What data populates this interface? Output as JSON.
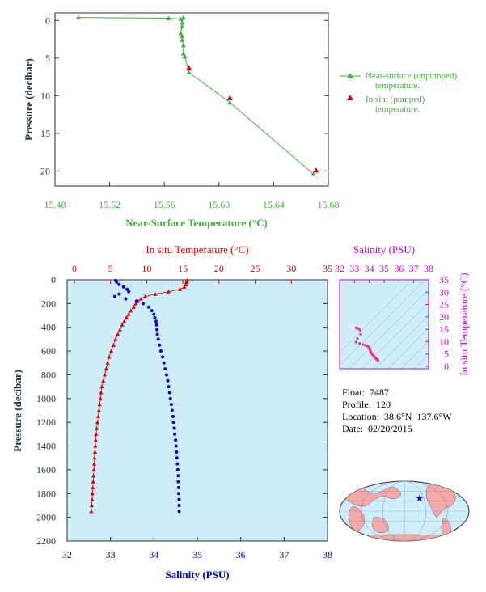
{
  "colors": {
    "green": "#44aa44",
    "red": "#dd0000",
    "blue": "#0000cc",
    "magenta": "#cc00cc",
    "axis_dark": "#223344",
    "panel_bg": "#cdeef8",
    "land": "#f4a8a8",
    "ocean": "#cfeefc"
  },
  "info": {
    "float": "Float:  7487",
    "profile": "Profile:  120",
    "location": "Location:  38.6°N  137.6°W",
    "date": "Date:  02/20/2015"
  },
  "chart_data": [
    {
      "id": "near-surface",
      "type": "line",
      "xlabel": "Near-Surface Temperature (°C)",
      "ylabel": "Pressure (decibar)",
      "xlim": [
        15.48,
        15.68
      ],
      "ylim": [
        22,
        -1
      ],
      "xticks": [
        "15.48",
        "15.52",
        "15.56",
        "15.60",
        "15.64",
        "15.68"
      ],
      "yticks": [
        "0",
        "5",
        "10",
        "15",
        "20"
      ],
      "legend": [
        {
          "label_line1": "Near-surface (unpumped)",
          "label_line2": "temperature."
        },
        {
          "label_line1": "In situ (pumped)",
          "label_line2": "temperature."
        }
      ],
      "series": [
        {
          "marker": "triangle",
          "x": [
            15.497,
            15.563,
            15.572,
            15.574,
            15.573,
            15.573,
            15.572,
            15.573,
            15.573,
            15.574,
            15.574,
            15.575,
            15.578,
            15.608,
            15.669
          ],
          "y": [
            -0.4,
            -0.3,
            -0.2,
            -0.4,
            0.3,
            0.8,
            1.7,
            2.1,
            2.6,
            3.3,
            4.4,
            4.8,
            6.9,
            10.9,
            20.4
          ]
        },
        {
          "marker": "triangle",
          "x": [
            15.578,
            15.608,
            15.671
          ],
          "y": [
            6.3,
            10.3,
            19.9
          ]
        }
      ]
    },
    {
      "id": "profile",
      "type": "scatter",
      "ylabel": "Pressure (decibar)",
      "ylim": [
        2200,
        0
      ],
      "yticks": [
        "0",
        "200",
        "400",
        "600",
        "800",
        "1000",
        "1200",
        "1400",
        "1600",
        "1800",
        "2000",
        "2200"
      ],
      "top_axis": {
        "label": "In situ Temperature (°C)",
        "range": [
          -1,
          35
        ],
        "ticks": [
          "0",
          "5",
          "10",
          "15",
          "20",
          "25",
          "30",
          "35"
        ]
      },
      "bottom_axis": {
        "label": "Salinity (PSU)",
        "range": [
          32,
          38
        ],
        "ticks": [
          "32",
          "33",
          "34",
          "35",
          "36",
          "37",
          "38"
        ]
      },
      "temperature": {
        "marker": "triangle",
        "p": [
          5,
          20,
          40,
          60,
          80,
          100,
          120,
          140,
          160,
          180,
          200,
          230,
          260,
          290,
          320,
          350,
          380,
          420,
          460,
          500,
          550,
          600,
          650,
          700,
          750,
          800,
          850,
          900,
          950,
          1000,
          1050,
          1100,
          1150,
          1200,
          1250,
          1300,
          1350,
          1400,
          1450,
          1500,
          1550,
          1600,
          1650,
          1700,
          1750,
          1800,
          1850,
          1900,
          1950
        ],
        "t": [
          15.6,
          15.5,
          15.4,
          15.2,
          14.6,
          13.0,
          11.2,
          9.8,
          9.2,
          8.8,
          8.5,
          8.2,
          7.8,
          7.5,
          7.2,
          6.9,
          6.6,
          6.3,
          6.0,
          5.7,
          5.4,
          5.1,
          4.8,
          4.6,
          4.4,
          4.2,
          4.0,
          3.8,
          3.7,
          3.6,
          3.5,
          3.4,
          3.3,
          3.2,
          3.1,
          3.0,
          2.95,
          2.9,
          2.85,
          2.8,
          2.75,
          2.7,
          2.65,
          2.6,
          2.55,
          2.5,
          2.45,
          2.4,
          2.35
        ]
      },
      "salinity": {
        "marker": "dot",
        "p": [
          5,
          20,
          40,
          60,
          80,
          100,
          120,
          140,
          160,
          180,
          200,
          230,
          260,
          290,
          320,
          350,
          380,
          420,
          460,
          500,
          550,
          600,
          650,
          700,
          750,
          800,
          850,
          900,
          950,
          1000,
          1050,
          1100,
          1150,
          1200,
          1250,
          1300,
          1350,
          1400,
          1450,
          1500,
          1550,
          1600,
          1650,
          1700,
          1750,
          1800,
          1850,
          1900,
          1950
        ],
        "s": [
          33.12,
          33.14,
          33.2,
          33.3,
          33.38,
          33.42,
          33.2,
          33.1,
          33.35,
          33.6,
          33.75,
          33.88,
          33.95,
          34.0,
          34.02,
          34.05,
          34.06,
          34.07,
          34.08,
          34.1,
          34.13,
          34.16,
          34.2,
          34.23,
          34.26,
          34.29,
          34.32,
          34.34,
          34.36,
          34.38,
          34.4,
          34.42,
          34.44,
          34.45,
          34.47,
          34.48,
          34.5,
          34.51,
          34.52,
          34.53,
          34.54,
          34.55,
          34.56,
          34.56,
          34.57,
          34.57,
          34.58,
          34.58,
          34.58
        ]
      }
    },
    {
      "id": "ts-diagram",
      "type": "scatter",
      "title": "Salinity (PSU)",
      "ylabel": "In situ Temperature (°C)",
      "xlim": [
        32,
        38
      ],
      "ylim": [
        -1,
        35
      ],
      "xticks": [
        "32",
        "33",
        "34",
        "35",
        "36",
        "37",
        "38"
      ],
      "yticks": [
        "0",
        "5",
        "10",
        "15",
        "20",
        "25",
        "30",
        "35"
      ],
      "s": [
        33.12,
        33.14,
        33.2,
        33.3,
        33.38,
        33.42,
        33.2,
        33.1,
        33.35,
        33.6,
        33.75,
        33.88,
        33.95,
        34.0,
        34.02,
        34.05,
        34.06,
        34.07,
        34.08,
        34.1,
        34.13,
        34.16,
        34.2,
        34.23,
        34.26,
        34.29,
        34.32,
        34.34,
        34.36,
        34.38,
        34.4,
        34.42,
        34.44,
        34.45,
        34.47,
        34.48,
        34.5,
        34.51,
        34.52,
        34.53,
        34.54,
        34.55,
        34.56,
        34.56,
        34.57,
        34.57,
        34.58,
        34.58,
        34.58
      ],
      "t": [
        15.6,
        15.5,
        15.4,
        15.2,
        14.6,
        13.0,
        11.2,
        9.8,
        9.2,
        8.8,
        8.5,
        8.2,
        7.8,
        7.5,
        7.2,
        6.9,
        6.6,
        6.3,
        6.0,
        5.7,
        5.4,
        5.1,
        4.8,
        4.6,
        4.4,
        4.2,
        4.0,
        3.8,
        3.7,
        3.6,
        3.5,
        3.4,
        3.3,
        3.2,
        3.1,
        3.0,
        2.95,
        2.9,
        2.85,
        2.8,
        2.75,
        2.7,
        2.65,
        2.6,
        2.55,
        2.5,
        2.45,
        2.4,
        2.35
      ]
    },
    {
      "id": "location-map",
      "type": "map",
      "marker": {
        "lat": 38.6,
        "lon": -137.6
      }
    }
  ]
}
